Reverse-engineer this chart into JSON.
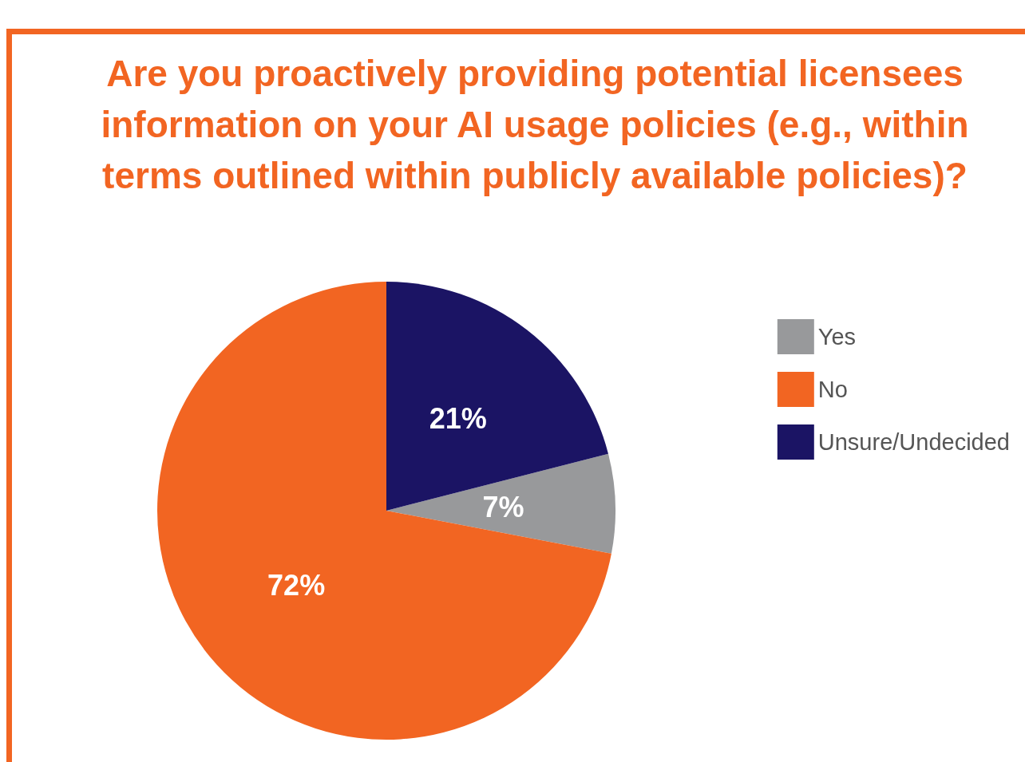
{
  "chart_data": {
    "type": "pie",
    "title": "Are you proactively providing potential licensees information on your AI usage policies (e.g., within terms outlined within publicly available policies)?",
    "categories": [
      "Yes",
      "No",
      "Unsure/Undecided"
    ],
    "values": [
      7,
      72,
      21
    ],
    "value_labels": [
      "7%",
      "72%",
      "21%"
    ],
    "colors": [
      "#98999b",
      "#f26522",
      "#1b1464"
    ],
    "legend": "top right"
  }
}
